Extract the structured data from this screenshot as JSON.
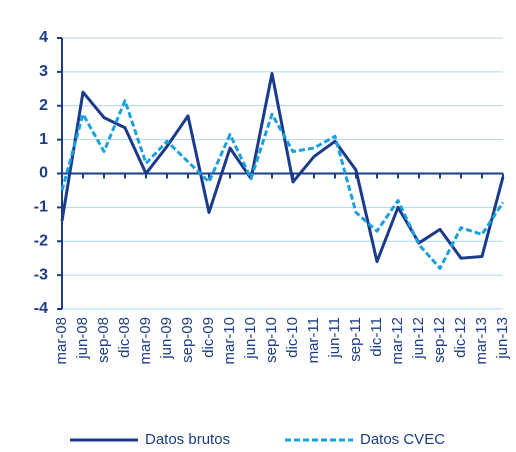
{
  "chart_data": {
    "type": "line",
    "categories": [
      "mar-08",
      "jun-08",
      "sep-08",
      "dic-08",
      "mar-09",
      "jun-09",
      "sep-09",
      "dic-09",
      "mar-10",
      "jun-10",
      "sep-10",
      "dic-10",
      "mar-11",
      "jun-11",
      "sep-11",
      "dic-11",
      "mar-12",
      "jun-12",
      "sep-12",
      "dic-12",
      "mar-13",
      "jun-13"
    ],
    "series": [
      {
        "name": "Datos brutos",
        "color": "#1a3a8a",
        "dash": false,
        "values": [
          -1.4,
          2.4,
          1.65,
          1.35,
          0.0,
          0.8,
          1.7,
          -1.15,
          0.75,
          -0.15,
          2.95,
          -0.25,
          0.5,
          0.95,
          0.1,
          -2.6,
          -1.0,
          -2.05,
          -1.65,
          -2.5,
          -2.45,
          -0.1
        ]
      },
      {
        "name": "Datos CVEC",
        "color": "#1aa0dc",
        "dash": true,
        "values": [
          -0.5,
          1.75,
          0.65,
          2.15,
          0.3,
          0.95,
          0.35,
          -0.25,
          1.15,
          -0.15,
          1.75,
          0.65,
          0.75,
          1.1,
          -1.15,
          -1.7,
          -0.8,
          -2.1,
          -2.8,
          -1.6,
          -1.8,
          -0.85
        ]
      }
    ],
    "ylim": [
      -4,
      4
    ],
    "yticks": [
      -4,
      -3,
      -2,
      -1,
      0,
      1,
      2,
      3,
      4
    ],
    "grid": true,
    "legend": "bottom"
  }
}
